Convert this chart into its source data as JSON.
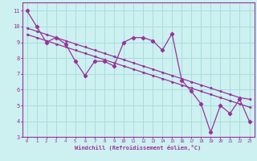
{
  "xlabel": "Windchill (Refroidissement éolien,°C)",
  "xlim": [
    -0.5,
    23.5
  ],
  "ylim": [
    3,
    11.5
  ],
  "yticks": [
    3,
    4,
    5,
    6,
    7,
    8,
    9,
    10,
    11
  ],
  "xticks": [
    0,
    1,
    2,
    3,
    4,
    5,
    6,
    7,
    8,
    9,
    10,
    11,
    12,
    13,
    14,
    15,
    16,
    17,
    18,
    19,
    20,
    21,
    22,
    23
  ],
  "bg_color": "#cdf0f0",
  "line_color": "#993399",
  "grid_color": "#aadddd",
  "line1_x": [
    0,
    1,
    2,
    3,
    4,
    5,
    6,
    7,
    8,
    9,
    10,
    11,
    12,
    13,
    14,
    15,
    16,
    17,
    18,
    19,
    20,
    21,
    22,
    23
  ],
  "line1_y": [
    11.0,
    10.0,
    9.0,
    9.3,
    8.9,
    7.8,
    6.9,
    7.8,
    7.8,
    7.5,
    9.0,
    9.3,
    9.3,
    9.1,
    8.5,
    9.55,
    6.6,
    5.9,
    5.1,
    3.3,
    5.0,
    4.5,
    5.4,
    4.0
  ],
  "line2_x": [
    0,
    23
  ],
  "line2_y": [
    9.9,
    5.4
  ],
  "line3_x": [
    0,
    23
  ],
  "line3_y": [
    9.5,
    4.9
  ],
  "line2_full_x": [
    0,
    1,
    2,
    3,
    4,
    5,
    6,
    7,
    8,
    9,
    10,
    11,
    12,
    13,
    14,
    15,
    16,
    17,
    18,
    19,
    20,
    21,
    22,
    23
  ],
  "line2_full_y": [
    9.9,
    9.7,
    9.5,
    9.3,
    9.1,
    8.9,
    8.7,
    8.5,
    8.3,
    8.1,
    7.9,
    7.7,
    7.5,
    7.3,
    7.1,
    6.9,
    6.7,
    6.5,
    6.3,
    6.1,
    5.9,
    5.7,
    5.5,
    5.4
  ],
  "line3_full_x": [
    0,
    1,
    2,
    3,
    4,
    5,
    6,
    7,
    8,
    9,
    10,
    11,
    12,
    13,
    14,
    15,
    16,
    17,
    18,
    19,
    20,
    21,
    22,
    23
  ],
  "line3_full_y": [
    9.5,
    9.3,
    9.1,
    8.9,
    8.7,
    8.5,
    8.3,
    8.1,
    7.9,
    7.7,
    7.5,
    7.3,
    7.1,
    6.9,
    6.7,
    6.5,
    6.3,
    6.1,
    5.9,
    5.7,
    5.5,
    5.3,
    5.1,
    4.9
  ]
}
